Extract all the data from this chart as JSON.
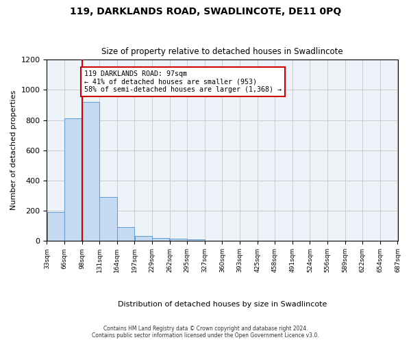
{
  "title": "119, DARKLANDS ROAD, SWADLINCOTE, DE11 0PQ",
  "subtitle": "Size of property relative to detached houses in Swadlincote",
  "xlabel": "Distribution of detached houses by size in Swadlincote",
  "ylabel": "Number of detached properties",
  "bar_color": "#c5d9f0",
  "bar_edge_color": "#5b9bd5",
  "property_sqm": 97,
  "bin_edges": [
    33,
    66,
    99,
    132,
    165,
    198,
    231,
    264,
    297,
    330,
    363,
    396,
    429,
    462,
    495,
    528,
    561,
    594,
    627,
    660,
    693
  ],
  "bar_heights": [
    190,
    810,
    920,
    290,
    90,
    35,
    20,
    15,
    10,
    0,
    0,
    0,
    0,
    0,
    0,
    0,
    0,
    0,
    0,
    0
  ],
  "tick_labels": [
    "33sqm",
    "66sqm",
    "98sqm",
    "131sqm",
    "164sqm",
    "197sqm",
    "229sqm",
    "262sqm",
    "295sqm",
    "327sqm",
    "360sqm",
    "393sqm",
    "425sqm",
    "458sqm",
    "491sqm",
    "524sqm",
    "556sqm",
    "589sqm",
    "622sqm",
    "654sqm",
    "687sqm"
  ],
  "annotation_text": "119 DARKLANDS ROAD: 97sqm\n← 41% of detached houses are smaller (953)\n58% of semi-detached houses are larger (1,368) →",
  "annotation_box_color": "#ffffff",
  "annotation_box_edge": "#cc0000",
  "vline_x": 99,
  "vline_color": "#cc0000",
  "ylim": [
    0,
    1200
  ],
  "yticks": [
    0,
    200,
    400,
    600,
    800,
    1000,
    1200
  ],
  "footer_text": "Contains HM Land Registry data © Crown copyright and database right 2024.\nContains public sector information licensed under the Open Government Licence v3.0.",
  "bg_color": "#ffffff",
  "grid_color": "#cccccc"
}
